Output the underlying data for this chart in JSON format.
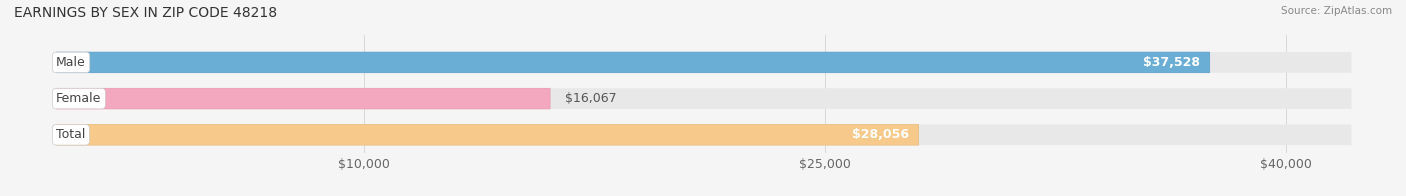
{
  "title": "EARNINGS BY SEX IN ZIP CODE 48218",
  "source": "Source: ZipAtlas.com",
  "categories": [
    "Male",
    "Female",
    "Total"
  ],
  "values": [
    37528,
    16067,
    28056
  ],
  "bar_colors": [
    "#6aaed6",
    "#f4a8c0",
    "#f7c98a"
  ],
  "bar_edge_colors": [
    "#5a9ec6",
    "#e898b0",
    "#e7b97a"
  ],
  "label_colors": [
    "white",
    "#555555",
    "white"
  ],
  "label_inside": [
    true,
    false,
    true
  ],
  "x_ticks": [
    10000,
    25000,
    40000
  ],
  "x_tick_labels": [
    "$10,000",
    "$25,000",
    "$40,000"
  ],
  "xlim": [
    0,
    43000
  ],
  "value_labels": [
    "$37,528",
    "$16,067",
    "$28,056"
  ],
  "cat_label_color": "#444444",
  "background_color": "#f5f5f5",
  "bar_bg_color": "#e8e8e8",
  "title_fontsize": 10,
  "axis_fontsize": 9,
  "bar_fontsize": 9
}
